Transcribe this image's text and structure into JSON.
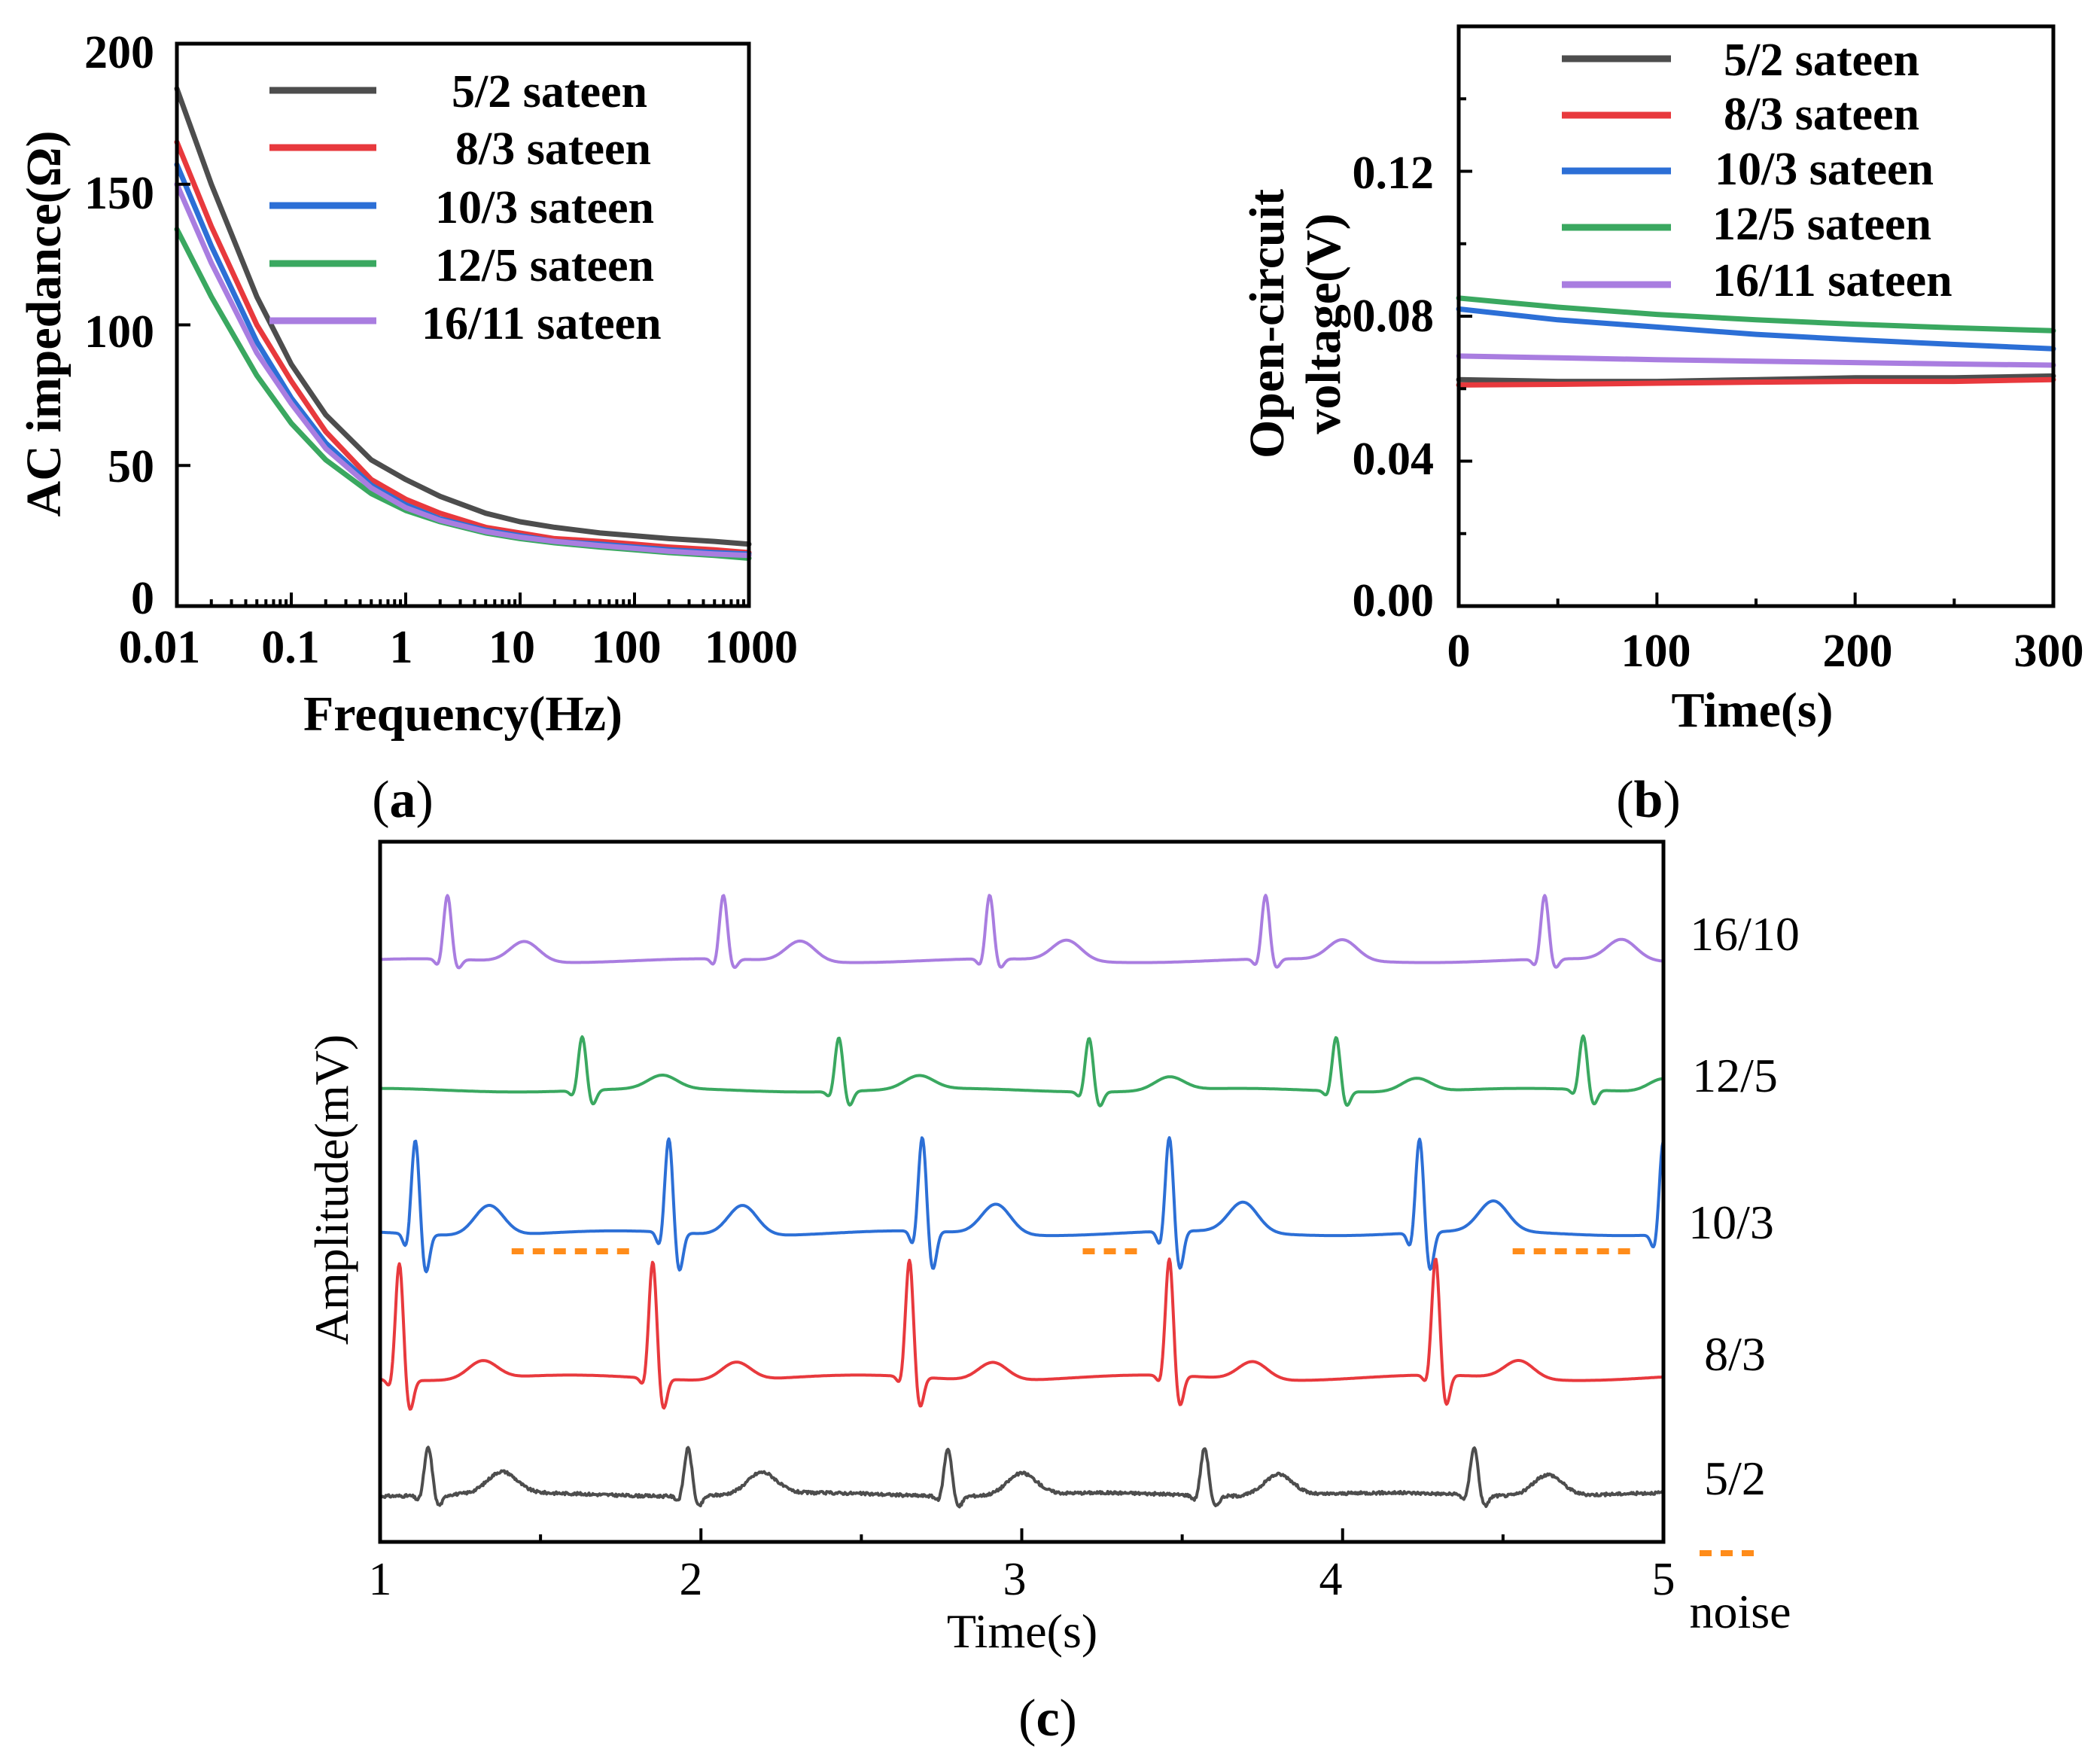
{
  "chart_data": [
    {
      "id": "a",
      "type": "line",
      "panel_label": "(a)",
      "xlabel": "Frequency(Hz)",
      "ylabel": "AC impedance(Ω)",
      "xscale": "log",
      "xlim": [
        0.01,
        1000
      ],
      "ylim": [
        0,
        200
      ],
      "xticks": [
        "0.01",
        "0.1",
        "1",
        "10",
        "100",
        "1000"
      ],
      "yticks": [
        "0",
        "50",
        "100",
        "150",
        "200"
      ],
      "legend_position": "top-right",
      "x": [
        0.01,
        0.02,
        0.05,
        0.1,
        0.2,
        0.5,
        1,
        2,
        5,
        10,
        20,
        50,
        100,
        200,
        500,
        1000
      ],
      "series": [
        {
          "name": "5/2 sateen",
          "color": "#4d4d4d",
          "values": [
            184,
            150,
            110,
            86,
            68,
            52,
            45,
            39,
            33,
            30,
            28,
            26,
            25,
            24,
            23,
            22
          ]
        },
        {
          "name": "8/3 sateen",
          "color": "#e8393d",
          "values": [
            165,
            135,
            100,
            80,
            62,
            45,
            38,
            33,
            28,
            26,
            24,
            23,
            22,
            21,
            20,
            19
          ]
        },
        {
          "name": "10/3 sateen",
          "color": "#2c6fd6",
          "values": [
            157,
            128,
            94,
            74,
            58,
            43,
            36,
            31,
            27,
            25,
            23,
            22,
            21,
            20,
            19,
            18.5
          ]
        },
        {
          "name": "12/5 sateen",
          "color": "#3aa860",
          "values": [
            134,
            110,
            82,
            65,
            52,
            40,
            34,
            30,
            26,
            24,
            22.5,
            21,
            20,
            19,
            18,
            17
          ]
        },
        {
          "name": "16/11 sateen",
          "color": "#a97de0",
          "values": [
            150,
            122,
            90,
            72,
            56,
            42,
            35,
            30.5,
            26.5,
            24.5,
            23,
            21.5,
            20.5,
            19.5,
            18.5,
            18
          ]
        }
      ]
    },
    {
      "id": "b",
      "type": "line",
      "panel_label": "(b)",
      "xlabel": "Time(s)",
      "ylabel": "Open-circuit voltage(V)",
      "ylabel_lines": [
        "Open-circuit",
        "voltage(V)"
      ],
      "xlim": [
        0,
        300
      ],
      "ylim": [
        0,
        0.16
      ],
      "xticks": [
        "0",
        "100",
        "200",
        "300"
      ],
      "yticks": [
        "0.00",
        "0.04",
        "0.08",
        "0.12"
      ],
      "legend_position": "top",
      "x": [
        0,
        50,
        100,
        150,
        200,
        250,
        300
      ],
      "series": [
        {
          "name": "5/2 sateen",
          "color": "#4d4d4d",
          "values": [
            0.0625,
            0.062,
            0.062,
            0.0625,
            0.063,
            0.063,
            0.0635
          ]
        },
        {
          "name": "8/3 sateen",
          "color": "#e8393d",
          "values": [
            0.061,
            0.0612,
            0.0615,
            0.0618,
            0.062,
            0.062,
            0.0625
          ]
        },
        {
          "name": "10/3 sateen",
          "color": "#2c6fd6",
          "values": [
            0.082,
            0.079,
            0.077,
            0.075,
            0.0735,
            0.0722,
            0.071
          ]
        },
        {
          "name": "12/5 sateen",
          "color": "#3aa860",
          "values": [
            0.085,
            0.0825,
            0.0805,
            0.079,
            0.0778,
            0.0768,
            0.076
          ]
        },
        {
          "name": "16/11 sateen",
          "color": "#a97de0",
          "values": [
            0.069,
            0.0685,
            0.068,
            0.0676,
            0.0672,
            0.0668,
            0.0665
          ]
        }
      ]
    },
    {
      "id": "c",
      "type": "line",
      "panel_label": "(c)",
      "xlabel": "Time(s)",
      "ylabel": "Amplitude(mV)",
      "xlim": [
        1,
        5
      ],
      "xticks": [
        "1",
        "2",
        "3",
        "4",
        "5"
      ],
      "noise_legend_label": "noise",
      "noise_color": "#ff8c1a",
      "traces": [
        {
          "name": "16/10",
          "color": "#a97de0",
          "beats": [
            1.21,
            2.07,
            2.9,
            3.76,
            4.63
          ],
          "r_amp": 1.0,
          "s_amp": 0.15,
          "q_amp": 0.12,
          "t_amp": 0.32,
          "t_offset": 0.24,
          "noise": 0.0
        },
        {
          "name": "12/5",
          "color": "#3aa860",
          "beats": [
            1.63,
            2.43,
            3.21,
            3.98,
            4.75
          ],
          "r_amp": 0.9,
          "s_amp": 0.25,
          "q_amp": 0.1,
          "t_amp": 0.22,
          "t_offset": 0.25,
          "noise": 0.0
        },
        {
          "name": "10/3",
          "color": "#2c6fd6",
          "beats": [
            1.11,
            1.9,
            2.69,
            3.46,
            4.24,
            5.0
          ],
          "r_amp": 1.2,
          "s_amp": 0.5,
          "q_amp": 0.2,
          "t_amp": 0.38,
          "t_offset": 0.23,
          "noise": 0.0
        },
        {
          "name": "8/3",
          "color": "#e8393d",
          "beats": [
            1.06,
            1.85,
            2.65,
            3.46,
            4.29
          ],
          "r_amp": 1.3,
          "s_amp": 0.35,
          "q_amp": 0.1,
          "t_amp": 0.2,
          "t_offset": 0.26,
          "noise": 0.0
        },
        {
          "name": "5/2",
          "color": "#4d4d4d",
          "beats": [
            1.15,
            1.96,
            2.77,
            3.57,
            4.41
          ],
          "r_amp": 0.85,
          "s_amp": 0.2,
          "q_amp": 0.1,
          "t_amp": 0.38,
          "t_offset": 0.23,
          "noise": 0.05
        }
      ],
      "noise_segments": [
        {
          "trace": "10/3",
          "x_start": 1.41,
          "x_end": 1.8
        },
        {
          "trace": "10/3",
          "x_start": 3.19,
          "x_end": 3.36
        },
        {
          "trace": "10/3",
          "x_start": 4.53,
          "x_end": 4.91
        }
      ]
    }
  ]
}
